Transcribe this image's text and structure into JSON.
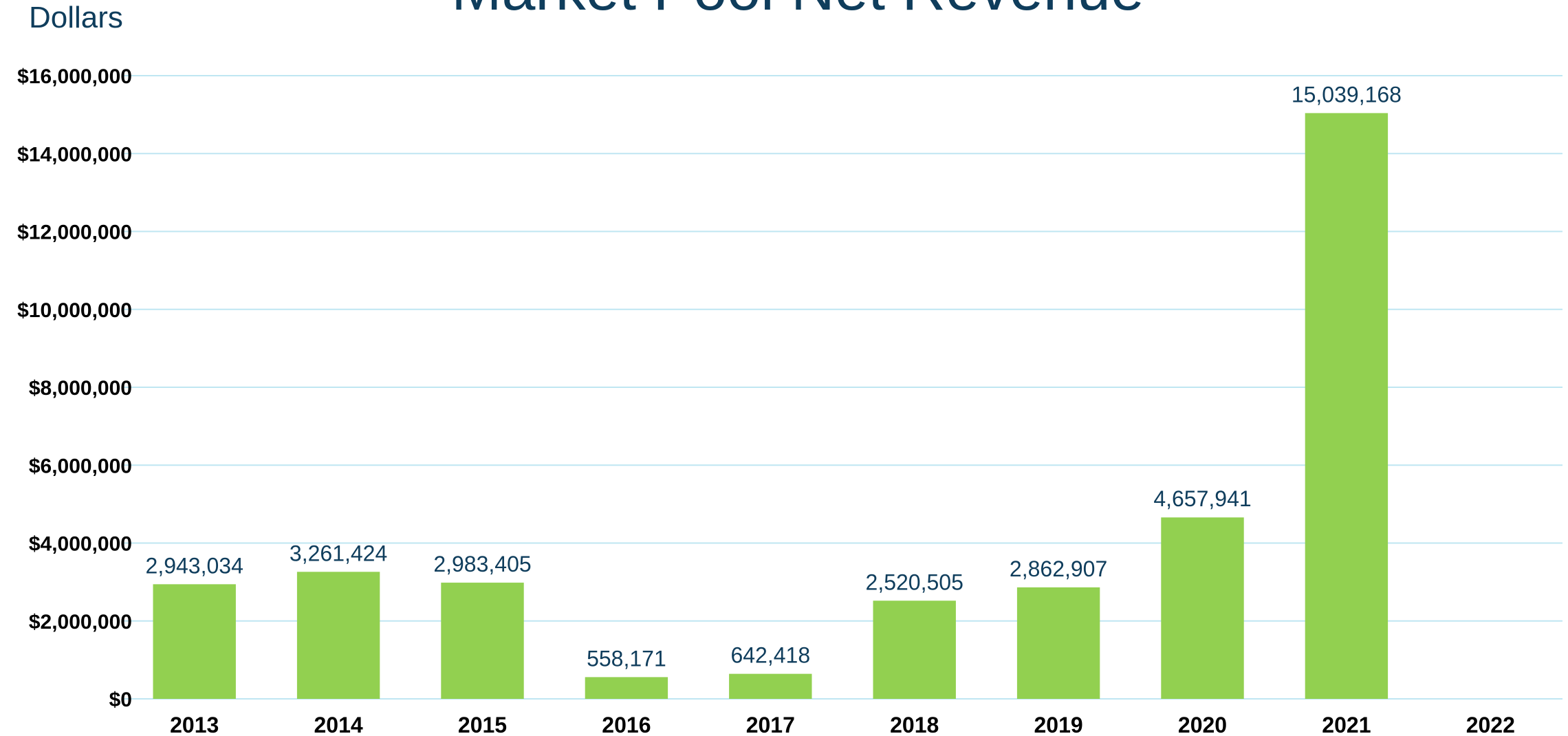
{
  "chart_data": {
    "type": "bar",
    "title": "Market Pool Net Revenue",
    "y_unit_label": "Dollars",
    "categories": [
      "2013",
      "2014",
      "2015",
      "2016",
      "2017",
      "2018",
      "2019",
      "2020",
      "2021",
      "2022"
    ],
    "values": [
      2943034,
      3261424,
      2983405,
      558171,
      642418,
      2520505,
      2862907,
      4657941,
      15039168,
      null
    ],
    "data_labels": [
      "2,943,034",
      "3,261,424",
      "2,983,405",
      "558,171",
      "642,418",
      "2,520,505",
      "2,862,907",
      "4,657,941",
      "15,039,168",
      ""
    ],
    "ylim": [
      0,
      16000000
    ],
    "y_ticks": [
      0,
      2000000,
      4000000,
      6000000,
      8000000,
      10000000,
      12000000,
      14000000,
      16000000
    ],
    "y_tick_labels": [
      "$0",
      "$2,000,000",
      "$4,000,000",
      "$6,000,000",
      "$8,000,000",
      "$10,000,000",
      "$12,000,000",
      "$14,000,000",
      "$16,000,000"
    ],
    "grid": true,
    "legend": "none",
    "colors": {
      "bar": "#92D050",
      "grid": "#BFE6F2",
      "title": "#0F3D5C",
      "data_label": "#0F3D5C",
      "tick_label": "#000000"
    }
  }
}
